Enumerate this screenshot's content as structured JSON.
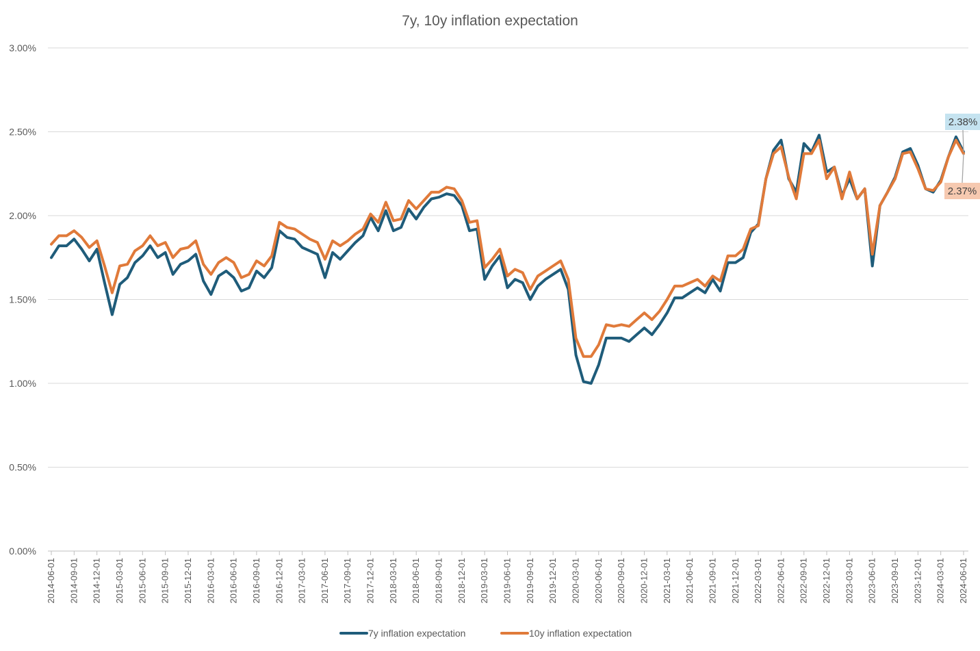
{
  "chart_data": {
    "type": "line",
    "title": "7y, 10y inflation expectation",
    "xlabel": "",
    "ylabel": "",
    "ylim": [
      0,
      3.0
    ],
    "yticks": [
      "0.00%",
      "0.50%",
      "1.00%",
      "1.50%",
      "2.00%",
      "2.50%",
      "3.00%"
    ],
    "x_tick_labels": [
      "2014-06-01",
      "2014-09-01",
      "2014-12-01",
      "2015-03-01",
      "2015-06-01",
      "2015-09-01",
      "2015-12-01",
      "2016-03-01",
      "2016-06-01",
      "2016-09-01",
      "2016-12-01",
      "2017-03-01",
      "2017-06-01",
      "2017-09-01",
      "2017-12-01",
      "2018-03-01",
      "2018-06-01",
      "2018-09-01",
      "2018-12-01",
      "2019-03-01",
      "2019-06-01",
      "2019-09-01",
      "2019-12-01",
      "2020-03-01",
      "2020-06-01",
      "2020-09-01",
      "2020-12-01",
      "2021-03-01",
      "2021-06-01",
      "2021-09-01",
      "2021-12-01",
      "2022-03-01",
      "2022-06-01",
      "2022-09-01",
      "2022-12-01",
      "2023-03-01",
      "2023-06-01",
      "2023-09-01",
      "2023-12-01",
      "2024-03-01",
      "2024-06-01"
    ],
    "x_start": "2014-06-01",
    "x_end": "2024-06-01",
    "grid": true,
    "legend_position": "bottom",
    "series": [
      {
        "name": "7y inflation expectation",
        "color": "#1F5C7A",
        "values": [
          1.75,
          1.82,
          1.82,
          1.86,
          1.8,
          1.73,
          1.8,
          1.6,
          1.41,
          1.59,
          1.63,
          1.72,
          1.76,
          1.82,
          1.75,
          1.78,
          1.65,
          1.71,
          1.73,
          1.77,
          1.61,
          1.53,
          1.64,
          1.67,
          1.63,
          1.55,
          1.57,
          1.67,
          1.63,
          1.69,
          1.91,
          1.87,
          1.86,
          1.81,
          1.79,
          1.77,
          1.63,
          1.78,
          1.74,
          1.79,
          1.84,
          1.88,
          1.99,
          1.91,
          2.03,
          1.91,
          1.93,
          2.04,
          1.98,
          2.05,
          2.1,
          2.11,
          2.13,
          2.12,
          2.06,
          1.91,
          1.92,
          1.62,
          1.7,
          1.76,
          1.57,
          1.62,
          1.6,
          1.5,
          1.58,
          1.62,
          1.65,
          1.68,
          1.56,
          1.17,
          1.01,
          1.0,
          1.11,
          1.27,
          1.27,
          1.27,
          1.25,
          1.29,
          1.33,
          1.29,
          1.35,
          1.42,
          1.51,
          1.51,
          1.54,
          1.57,
          1.54,
          1.62,
          1.55,
          1.72,
          1.72,
          1.75,
          1.9,
          1.95,
          2.22,
          2.39,
          2.45,
          2.22,
          2.14,
          2.43,
          2.38,
          2.48,
          2.26,
          2.29,
          2.12,
          2.22,
          2.1,
          2.16,
          1.7,
          2.06,
          2.14,
          2.23,
          2.38,
          2.4,
          2.3,
          2.16,
          2.14,
          2.21,
          2.35,
          2.47,
          2.38
        ]
      },
      {
        "name": "10y inflation expectation",
        "color": "#E07A3A",
        "values": [
          1.83,
          1.88,
          1.88,
          1.91,
          1.87,
          1.81,
          1.85,
          1.7,
          1.54,
          1.7,
          1.71,
          1.79,
          1.82,
          1.88,
          1.82,
          1.84,
          1.75,
          1.8,
          1.81,
          1.85,
          1.71,
          1.65,
          1.72,
          1.75,
          1.72,
          1.63,
          1.65,
          1.73,
          1.7,
          1.76,
          1.96,
          1.93,
          1.92,
          1.89,
          1.86,
          1.84,
          1.74,
          1.85,
          1.82,
          1.85,
          1.89,
          1.92,
          2.01,
          1.96,
          2.08,
          1.97,
          1.98,
          2.09,
          2.04,
          2.09,
          2.14,
          2.14,
          2.17,
          2.16,
          2.09,
          1.96,
          1.97,
          1.69,
          1.74,
          1.8,
          1.64,
          1.68,
          1.66,
          1.56,
          1.64,
          1.67,
          1.7,
          1.73,
          1.62,
          1.27,
          1.16,
          1.16,
          1.23,
          1.35,
          1.34,
          1.35,
          1.34,
          1.38,
          1.42,
          1.38,
          1.43,
          1.5,
          1.58,
          1.58,
          1.6,
          1.62,
          1.58,
          1.64,
          1.61,
          1.76,
          1.76,
          1.8,
          1.92,
          1.94,
          2.22,
          2.37,
          2.41,
          2.23,
          2.1,
          2.37,
          2.37,
          2.45,
          2.22,
          2.29,
          2.1,
          2.26,
          2.1,
          2.16,
          1.77,
          2.06,
          2.14,
          2.22,
          2.37,
          2.38,
          2.28,
          2.16,
          2.15,
          2.2,
          2.35,
          2.45,
          2.37
        ]
      }
    ],
    "callouts": [
      {
        "series": 0,
        "label": "2.38%",
        "fill": "#C5E3F0"
      },
      {
        "series": 1,
        "label": "2.37%",
        "fill": "#F6C9B0"
      }
    ]
  }
}
